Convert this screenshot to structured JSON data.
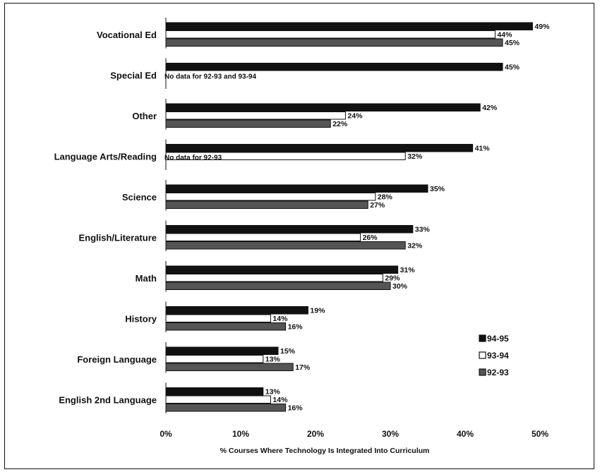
{
  "chart_data": {
    "type": "bar",
    "orientation": "horizontal",
    "title": "",
    "xlabel": "% Courses Where Technology Is Integrated Into Curriculum",
    "ylabel": "",
    "xlim": [
      0,
      50
    ],
    "xticks": [
      "0%",
      "10%",
      "20%",
      "30%",
      "40%",
      "50%"
    ],
    "grid": false,
    "legend_position": "right",
    "categories": [
      "Vocational Ed",
      "Special Ed",
      "Other",
      "Language Arts/Reading",
      "Science",
      "English/Literature",
      "Math",
      "History",
      "Foreign Language",
      "English 2nd Language"
    ],
    "series": [
      {
        "name": "94-95",
        "color": "#111111",
        "values": [
          49,
          45,
          42,
          41,
          35,
          33,
          31,
          19,
          15,
          13
        ],
        "labels": [
          "49%",
          "45%",
          "42%",
          "41%",
          "35%",
          "33%",
          "31%",
          "19%",
          "15%",
          "13%"
        ]
      },
      {
        "name": "93-94",
        "color": "#ffffff",
        "values": [
          44,
          null,
          24,
          32,
          28,
          26,
          29,
          14,
          13,
          14
        ],
        "labels": [
          "44%",
          "",
          "24%",
          "32%",
          "28%",
          "26%",
          "29%",
          "14%",
          "13%",
          "14%"
        ]
      },
      {
        "name": "92-93",
        "color": "#555555",
        "values": [
          45,
          null,
          22,
          null,
          27,
          32,
          30,
          16,
          17,
          16
        ],
        "labels": [
          "45%",
          "",
          "22%",
          "",
          "27%",
          "32%",
          "30%",
          "16%",
          "17%",
          "16%"
        ]
      }
    ],
    "notes": {
      "1": "No data for 92-93 and 93-94",
      "3": "No data for 92-93"
    }
  }
}
